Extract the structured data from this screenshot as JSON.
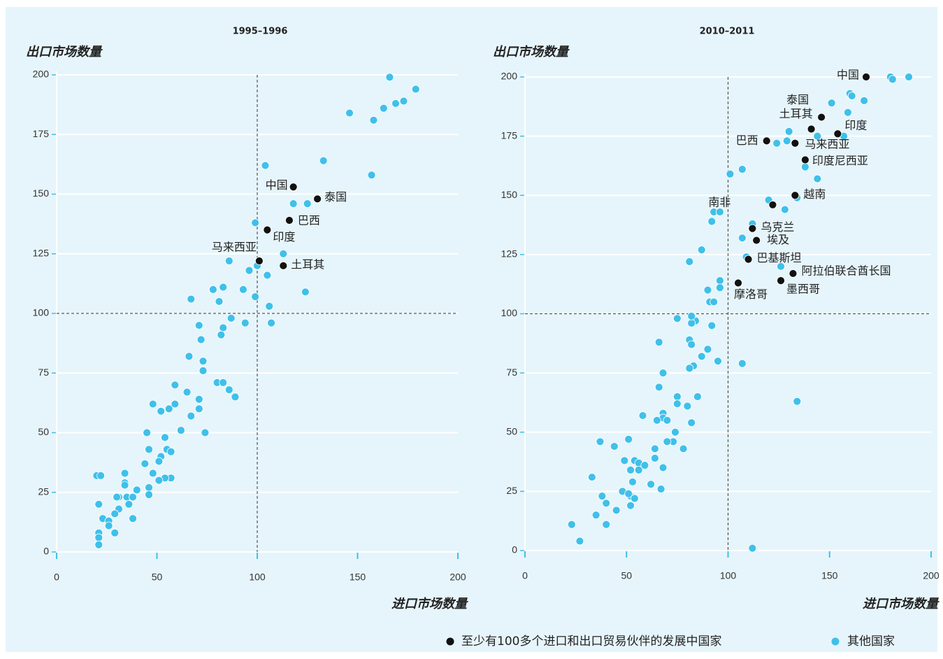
{
  "chart_data": [
    {
      "type": "scatter",
      "title": "1995–1996",
      "x_label": "进口市场数量",
      "y_label": "出口市场数量",
      "xlim": [
        0,
        200
      ],
      "ylim": [
        0,
        200
      ],
      "xticks": [
        0,
        50,
        100,
        150,
        200
      ],
      "yticks": [
        0,
        25,
        50,
        75,
        100,
        125,
        150,
        175,
        200
      ],
      "grid": true,
      "reference_lines": {
        "x": 100,
        "y": 100
      },
      "series": [
        {
          "name": "至少有100多个进口和出口贸易伙伴的发展中国家",
          "color": "#111111",
          "x": [
            118,
            130,
            116,
            105,
            101,
            113
          ],
          "values": [
            153,
            148,
            139,
            135,
            122,
            120
          ],
          "point_labels": [
            "中国",
            "泰国",
            "巴西",
            "印度",
            "马来西亚",
            "土耳其"
          ]
        },
        {
          "name": "其他国家",
          "color": "#3fc0ea",
          "x": [
            166,
            179,
            173,
            169,
            163,
            146,
            158,
            157,
            104,
            133,
            118,
            125,
            99,
            86,
            113,
            96,
            105,
            100,
            78,
            83,
            93,
            81,
            99,
            106,
            124,
            107,
            94,
            87,
            83,
            82,
            67,
            71,
            72,
            66,
            73,
            73,
            59,
            65,
            59,
            56,
            48,
            71,
            71,
            67,
            62,
            74,
            80,
            83,
            86,
            89,
            45,
            46,
            52,
            54,
            55,
            52,
            57,
            51,
            44,
            48,
            57,
            54,
            51,
            46,
            46,
            34,
            34,
            34,
            40,
            35,
            36,
            38,
            31,
            20,
            22,
            30,
            38,
            31,
            29,
            21,
            23,
            26,
            26,
            29,
            21,
            21,
            21
          ],
          "values": [
            199,
            194,
            189,
            188,
            186,
            184,
            181,
            158,
            162,
            164,
            146,
            146,
            138,
            122,
            125,
            118,
            116,
            120,
            110,
            111,
            110,
            105,
            107,
            103,
            109,
            96,
            96,
            98,
            94,
            91,
            106,
            95,
            89,
            82,
            80,
            76,
            70,
            67,
            62,
            60,
            62,
            64,
            60,
            57,
            51,
            50,
            71,
            71,
            68,
            65,
            50,
            43,
            59,
            48,
            43,
            40,
            42,
            38,
            37,
            33,
            31,
            31,
            30,
            27,
            24,
            33,
            29,
            28,
            26,
            23,
            20,
            23,
            23,
            32,
            32,
            23,
            14,
            18,
            16,
            20,
            14,
            13,
            11,
            8,
            8,
            6,
            3
          ]
        }
      ]
    },
    {
      "type": "scatter",
      "title": "2010–2011",
      "x_label": "进口市场数量",
      "y_label": "出口市场数量",
      "xlim": [
        0,
        200
      ],
      "ylim": [
        0,
        200
      ],
      "xticks": [
        0,
        50,
        100,
        150,
        200
      ],
      "yticks": [
        0,
        25,
        50,
        75,
        100,
        125,
        150,
        175,
        200
      ],
      "grid": true,
      "reference_lines": {
        "x": 100,
        "y": 100
      },
      "series": [
        {
          "color": "#111111",
          "x": [
            168,
            146,
            141,
            154,
            119,
            133,
            138,
            133,
            122,
            112,
            114,
            110,
            132,
            126,
            105
          ],
          "values": [
            200,
            183,
            178,
            176,
            173,
            172,
            165,
            150,
            146,
            136,
            131,
            123,
            117,
            114,
            113
          ],
          "point_labels": [
            "中国",
            "泰国",
            "土耳其",
            "印度",
            "巴西",
            "马来西亚",
            "印度尼西亚",
            "越南",
            "南非",
            "乌克兰",
            "埃及",
            "巴基斯坦",
            "阿拉伯联合酋长国",
            "墨西哥",
            "摩洛哥"
          ]
        },
        {
          "color": "#3fc0ea",
          "x": [
            180,
            181,
            189,
            160,
            161,
            151,
            167,
            159,
            157,
            144,
            130,
            129,
            124,
            138,
            144,
            134,
            120,
            128,
            101,
            107,
            93,
            96,
            92,
            112,
            107,
            87,
            109,
            126,
            81,
            96,
            96,
            90,
            91,
            93,
            75,
            84,
            82,
            82,
            92,
            107,
            95,
            90,
            81,
            82,
            87,
            83,
            81,
            66,
            68,
            66,
            75,
            75,
            85,
            80,
            68,
            68,
            65,
            70,
            82,
            58,
            74,
            73,
            70,
            78,
            64,
            64,
            68,
            54,
            56,
            59,
            56,
            52,
            44,
            51,
            37,
            49,
            53,
            52,
            48,
            51,
            33,
            38,
            40,
            35,
            40,
            45,
            52,
            54,
            62,
            67,
            23,
            27,
            112,
            134
          ],
          "values": [
            200,
            199,
            200,
            193,
            192,
            189,
            190,
            185,
            175,
            175,
            177,
            173,
            172,
            162,
            157,
            149,
            148,
            144,
            159,
            161,
            143,
            143,
            139,
            138,
            132,
            127,
            124,
            120,
            122,
            114,
            111,
            110,
            105,
            105,
            98,
            97,
            96,
            99,
            95,
            79,
            80,
            85,
            89,
            87,
            82,
            78,
            77,
            88,
            75,
            69,
            65,
            62,
            65,
            61,
            58,
            56,
            55,
            55,
            54,
            57,
            50,
            46,
            46,
            43,
            43,
            39,
            35,
            38,
            37,
            36,
            34,
            34,
            44,
            47,
            46,
            38,
            29,
            23,
            25,
            24,
            31,
            23,
            20,
            15,
            11,
            17,
            19,
            22,
            28,
            26,
            11,
            4,
            1,
            63
          ]
        }
      ]
    }
  ]
}
